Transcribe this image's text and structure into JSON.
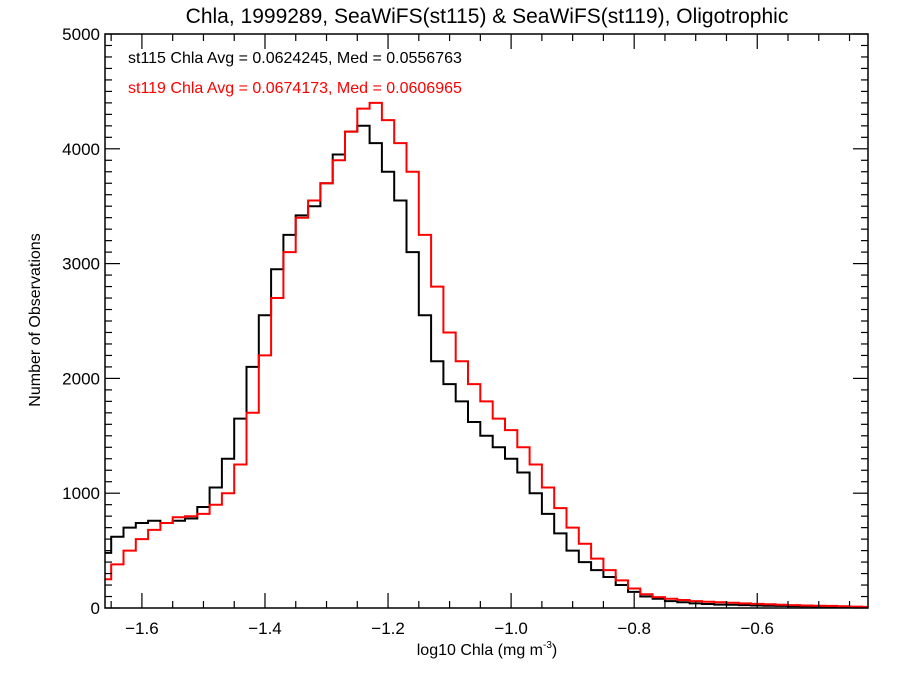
{
  "chart_data": {
    "type": "line",
    "style": "step-histogram",
    "title": "Chla, 1999289, SeaWiFS(st115) & SeaWiFS(st119), Oligotrophic",
    "xlabel": "log10 Chla (mg m",
    "xlabel_sup": "-3",
    "xlabel_end": ")",
    "ylabel": "Number of Observations",
    "xlim": [
      -1.66,
      -0.42
    ],
    "ylim": [
      0,
      5000
    ],
    "grid": false,
    "x_ticks": [
      -1.6,
      -1.4,
      -1.2,
      -1.0,
      -0.8,
      -0.6
    ],
    "x_tick_labels": [
      "−1.6",
      "−1.4",
      "−1.2",
      "−1.0",
      "−0.8",
      "−0.6"
    ],
    "x_minor_step": 0.05,
    "y_ticks": [
      0,
      1000,
      2000,
      3000,
      4000,
      5000
    ],
    "y_tick_labels": [
      "0",
      "1000",
      "2000",
      "3000",
      "4000",
      "5000"
    ],
    "y_minor_step": 100,
    "annotations": [
      {
        "text": "st115 Chla Avg = 0.0624245, Med = 0.0556763",
        "color": "#000000"
      },
      {
        "text": "st119 Chla Avg = 0.0674173, Med = 0.0606965",
        "color": "#ff0000"
      }
    ],
    "x": [
      -1.66,
      -1.64,
      -1.62,
      -1.6,
      -1.58,
      -1.56,
      -1.54,
      -1.52,
      -1.5,
      -1.48,
      -1.46,
      -1.44,
      -1.42,
      -1.4,
      -1.38,
      -1.36,
      -1.34,
      -1.32,
      -1.3,
      -1.28,
      -1.26,
      -1.24,
      -1.22,
      -1.2,
      -1.18,
      -1.16,
      -1.14,
      -1.12,
      -1.1,
      -1.08,
      -1.06,
      -1.04,
      -1.02,
      -1.0,
      -0.98,
      -0.96,
      -0.94,
      -0.92,
      -0.9,
      -0.88,
      -0.86,
      -0.84,
      -0.82,
      -0.8,
      -0.78,
      -0.76,
      -0.74,
      -0.72,
      -0.7,
      -0.68,
      -0.66,
      -0.64,
      -0.62,
      -0.6,
      -0.58,
      -0.56,
      -0.54,
      -0.52,
      -0.5,
      -0.48,
      -0.46,
      -0.44,
      -0.42
    ],
    "series": [
      {
        "name": "st115",
        "color": "#000000",
        "values": [
          480,
          620,
          700,
          740,
          760,
          740,
          760,
          780,
          880,
          1050,
          1300,
          1650,
          2100,
          2550,
          2950,
          3250,
          3420,
          3500,
          3700,
          3950,
          4150,
          4200,
          4050,
          3800,
          3550,
          3100,
          2550,
          2150,
          1950,
          1800,
          1620,
          1500,
          1400,
          1300,
          1180,
          1000,
          820,
          650,
          500,
          400,
          330,
          270,
          200,
          140,
          100,
          80,
          60,
          50,
          40,
          35,
          30,
          28,
          25,
          22,
          20,
          18,
          16,
          14,
          12,
          10,
          9,
          8,
          7
        ]
      },
      {
        "name": "st119",
        "color": "#ff0000",
        "values": [
          250,
          380,
          500,
          600,
          680,
          740,
          790,
          800,
          820,
          900,
          1000,
          1250,
          1700,
          2200,
          2700,
          3100,
          3400,
          3550,
          3700,
          3900,
          4150,
          4350,
          4400,
          4250,
          4050,
          3800,
          3250,
          2800,
          2400,
          2150,
          1950,
          1800,
          1650,
          1550,
          1400,
          1250,
          1050,
          870,
          700,
          560,
          430,
          330,
          240,
          170,
          120,
          95,
          80,
          70,
          60,
          55,
          50,
          45,
          40,
          36,
          32,
          28,
          25,
          22,
          20,
          18,
          15,
          12,
          10
        ]
      }
    ]
  }
}
